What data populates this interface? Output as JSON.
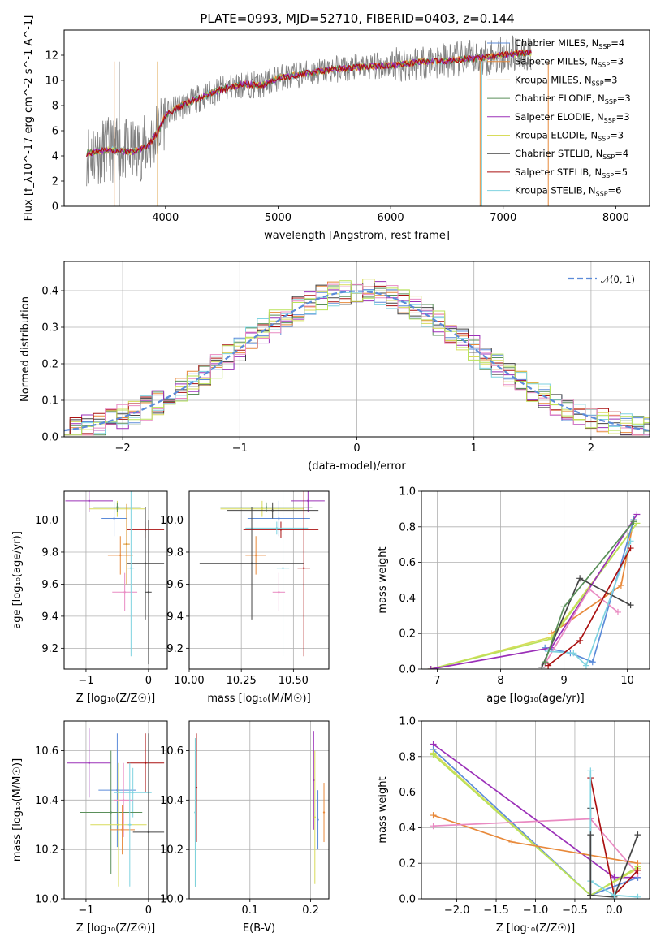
{
  "colors": {
    "chabrier_miles": "#5b8bd9",
    "salpeter_miles": "#e8893a",
    "kroupa_miles": "#d9922a",
    "chabrier_elodie": "#5a8f5a",
    "salpeter_elodie": "#9b30b8",
    "kroupa_elodie": "#d8dc5a",
    "chabrier_stelib": "#444444",
    "salpeter_stelib": "#aa1111",
    "kroupa_stelib": "#7fd3e0",
    "data": "#808080",
    "pink": "#e98ac2",
    "lime": "#b9e25a",
    "normal": "#5b8bd9"
  },
  "chart_data": [
    {
      "id": "spectrum",
      "type": "line",
      "title": "PLATE=0993, MJD=52710, FIBERID=0403, z=0.144",
      "xlabel": "wavelength [Angstrom, rest frame]",
      "ylabel": "Flux [f_λ10^-17 erg cm^-2 s^-1 A^-1]",
      "xlim": [
        3100,
        8300
      ],
      "ylim": [
        0,
        14
      ],
      "xticks": [
        4000,
        5000,
        6000,
        7000,
        8000
      ],
      "yticks": [
        0,
        2,
        4,
        6,
        8,
        10,
        12
      ],
      "grid": false,
      "legend_position": "top-right",
      "continuum": [
        [
          3300,
          4.2
        ],
        [
          3500,
          4.5
        ],
        [
          3700,
          4.3
        ],
        [
          3850,
          4.8
        ],
        [
          3950,
          6.2
        ],
        [
          4000,
          7.2
        ],
        [
          4100,
          7.8
        ],
        [
          4300,
          8.6
        ],
        [
          4500,
          9.3
        ],
        [
          4700,
          9.7
        ],
        [
          4861,
          9.6
        ],
        [
          5000,
          10.2
        ],
        [
          5200,
          10.5
        ],
        [
          5500,
          10.9
        ],
        [
          5800,
          11.1
        ],
        [
          6000,
          11.2
        ],
        [
          6300,
          11.5
        ],
        [
          6563,
          11.6
        ],
        [
          6800,
          11.8
        ],
        [
          7000,
          12.0
        ],
        [
          7200,
          12.2
        ]
      ],
      "legend": [
        {
          "pre": "Chabrier MILES, N",
          "sub": "SSP",
          "post": "=4",
          "color": "chabrier_miles"
        },
        {
          "pre": "Salpeter MILES, N",
          "sub": "SSP",
          "post": "=3",
          "color": "salpeter_miles"
        },
        {
          "pre": "Kroupa MILES, N",
          "sub": "SSP",
          "post": "=3",
          "color": "kroupa_miles"
        },
        {
          "pre": "Chabrier ELODIE, N",
          "sub": "SSP",
          "post": "=3",
          "color": "chabrier_elodie"
        },
        {
          "pre": "Salpeter ELODIE, N",
          "sub": "SSP",
          "post": "=3",
          "color": "salpeter_elodie"
        },
        {
          "pre": "Kroupa ELODIE, N",
          "sub": "SSP",
          "post": "=3",
          "color": "kroupa_elodie"
        },
        {
          "pre": "Chabrier STELIB, N",
          "sub": "SSP",
          "post": "=4",
          "color": "chabrier_stelib"
        },
        {
          "pre": "Salpeter STELIB, N",
          "sub": "SSP",
          "post": "=5",
          "color": "salpeter_stelib"
        },
        {
          "pre": "Kroupa STELIB, N",
          "sub": "SSP",
          "post": "=6",
          "color": "kroupa_stelib"
        }
      ]
    },
    {
      "id": "residuals",
      "type": "line",
      "xlabel": "(data-model)/error",
      "ylabel": "Normed distribution",
      "xlim": [
        -2.5,
        2.5
      ],
      "ylim": [
        0,
        0.48
      ],
      "xticks": [
        -2,
        -1,
        0,
        1,
        2
      ],
      "xtick_labels": [
        "−2",
        "−1",
        "0",
        "1",
        "2"
      ],
      "yticks": [
        0,
        0.1,
        0.2,
        0.3,
        0.4
      ],
      "ytick_labels": [
        "0.0",
        "0.1",
        "0.2",
        "0.3",
        "0.4"
      ],
      "grid": true,
      "legend_position": "top-right",
      "legend_label": "𝒩(0, 1)",
      "normal": {
        "mean": 0,
        "sigma": 1
      }
    },
    {
      "id": "age-vs-z",
      "type": "scatter",
      "xlabel": "Z [log₁₀(Z/Z☉)]",
      "ylabel": "age  [log₁₀(age/yr)]",
      "xlim": [
        -1.35,
        0.3
      ],
      "ylim": [
        9.07,
        10.18
      ],
      "xticks": [
        -1,
        0
      ],
      "xtick_labels": [
        "−1",
        "0"
      ],
      "yticks": [
        9.2,
        9.4,
        9.6,
        9.8,
        10.0
      ],
      "ytick_labels": [
        "9.2",
        "9.4",
        "9.6",
        "9.8",
        "10.0"
      ],
      "grid": true,
      "points": [
        {
          "x": -0.95,
          "y": 10.12,
          "xerr": 0.38,
          "yerr": 0.07,
          "color": "salpeter_elodie"
        },
        {
          "x": -0.5,
          "y": 10.07,
          "xerr": 0.45,
          "yerr": 0.05,
          "color": "kroupa_elodie"
        },
        {
          "x": -0.5,
          "y": 10.08,
          "xerr": 0.38,
          "yerr": 0.03,
          "color": "chabrier_elodie"
        },
        {
          "x": -0.55,
          "y": 10.01,
          "xerr": 0.2,
          "yerr": 0.11,
          "color": "chabrier_miles"
        },
        {
          "x": -0.05,
          "y": 9.94,
          "xerr": 0.3,
          "yerr": 0.05,
          "color": "salpeter_stelib"
        },
        {
          "x": -0.45,
          "y": 9.78,
          "xerr": 0.2,
          "yerr": 0.12,
          "color": "salpeter_miles"
        },
        {
          "x": -0.35,
          "y": 9.85,
          "xerr": 0.05,
          "yerr": 0.25,
          "color": "kroupa_miles"
        },
        {
          "x": -0.05,
          "y": 9.73,
          "xerr": 0.3,
          "yerr": 0.35,
          "color": "chabrier_stelib"
        },
        {
          "x": -0.38,
          "y": 9.55,
          "xerr": 0.2,
          "yerr": 0.12,
          "color": "pink"
        },
        {
          "x": -0.28,
          "y": 9.7,
          "xerr": 0.05,
          "yerr": 0.55,
          "color": "kroupa_stelib"
        },
        {
          "x": 0.0,
          "y": 9.55,
          "xerr": 0.05,
          "yerr": 0.45,
          "color": "chabrier_stelib"
        }
      ]
    },
    {
      "id": "age-vs-mass",
      "type": "scatter",
      "xlabel": "mass [log₁₀(M/M☉)]",
      "xlim": [
        10.0,
        10.67
      ],
      "ylim": [
        9.07,
        10.18
      ],
      "xticks": [
        10.0,
        10.25,
        10.5
      ],
      "xtick_labels": [
        "10.00",
        "10.25",
        "10.50"
      ],
      "yticks": [
        9.2,
        9.4,
        9.6,
        9.8,
        10.0
      ],
      "ytick_labels": [
        "9.2",
        "9.4",
        "9.6",
        "9.8",
        "10.0"
      ],
      "grid": true,
      "points": [
        {
          "x": 10.57,
          "y": 10.12,
          "xerr": 0.08,
          "yerr": 0.07,
          "color": "salpeter_elodie"
        },
        {
          "x": 10.35,
          "y": 10.07,
          "xerr": 0.2,
          "yerr": 0.05,
          "color": "kroupa_elodie"
        },
        {
          "x": 10.37,
          "y": 10.08,
          "xerr": 0.22,
          "yerr": 0.03,
          "color": "chabrier_elodie"
        },
        {
          "x": 10.43,
          "y": 10.01,
          "xerr": 0.15,
          "yerr": 0.11,
          "color": "chabrier_miles"
        },
        {
          "x": 10.4,
          "y": 10.06,
          "xerr": 0.22,
          "yerr": 0.05,
          "color": "chabrier_stelib"
        },
        {
          "x": 10.44,
          "y": 9.94,
          "xerr": 0.18,
          "yerr": 0.05,
          "color": "salpeter_stelib"
        },
        {
          "x": 10.42,
          "y": 9.95,
          "xerr": 0.15,
          "yerr": 0.04,
          "color": "kroupa_stelib"
        },
        {
          "x": 10.32,
          "y": 9.78,
          "xerr": 0.05,
          "yerr": 0.12,
          "color": "salpeter_miles"
        },
        {
          "x": 10.3,
          "y": 9.73,
          "xerr": 0.25,
          "yerr": 0.35,
          "color": "chabrier_stelib"
        },
        {
          "x": 10.43,
          "y": 9.55,
          "xerr": 0.03,
          "yerr": 0.12,
          "color": "pink"
        },
        {
          "x": 10.45,
          "y": 9.7,
          "xerr": 0.03,
          "yerr": 0.55,
          "color": "kroupa_stelib"
        },
        {
          "x": 10.55,
          "y": 9.7,
          "xerr": 0.03,
          "yerr": 0.55,
          "color": "salpeter_stelib"
        }
      ]
    },
    {
      "id": "weight-vs-age",
      "type": "line",
      "xlabel": "age  [log₁₀(age/yr)]",
      "ylabel": "mass weight",
      "xlim": [
        6.75,
        10.35
      ],
      "ylim": [
        0,
        1
      ],
      "xticks": [
        7,
        8,
        9,
        10
      ],
      "xtick_labels": [
        "7",
        "8",
        "9",
        "10"
      ],
      "yticks": [
        0,
        0.2,
        0.4,
        0.6,
        0.8,
        1.0
      ],
      "ytick_labels": [
        "0.0",
        "0.2",
        "0.4",
        "0.6",
        "0.8",
        "1.0"
      ],
      "grid": true,
      "series": [
        {
          "color": "salpeter_miles",
          "x": [
            8.8,
            9.9,
            10.1
          ],
          "y": [
            0.2,
            0.47,
            0.84
          ]
        },
        {
          "color": "kroupa_elodie",
          "x": [
            6.9,
            8.8,
            10.15
          ],
          "y": [
            0.0,
            0.18,
            0.82
          ]
        },
        {
          "color": "lime",
          "x": [
            6.9,
            8.8,
            10.15
          ],
          "y": [
            0.0,
            0.17,
            0.82
          ]
        },
        {
          "color": "chabrier_miles",
          "x": [
            8.7,
            9.1,
            9.45,
            10.1
          ],
          "y": [
            0.12,
            0.09,
            0.04,
            0.84
          ]
        },
        {
          "color": "salpeter_elodie",
          "x": [
            6.9,
            8.8,
            10.15
          ],
          "y": [
            0.0,
            0.12,
            0.87
          ]
        },
        {
          "color": "pink",
          "x": [
            8.7,
            9.4,
            9.85
          ],
          "y": [
            0.03,
            0.45,
            0.32
          ]
        },
        {
          "color": "chabrier_stelib",
          "x": [
            8.65,
            9.25,
            10.05
          ],
          "y": [
            0.01,
            0.51,
            0.36
          ]
        },
        {
          "color": "kroupa_stelib",
          "x": [
            8.75,
            9.15,
            9.35,
            10.05
          ],
          "y": [
            0.1,
            0.09,
            0.02,
            0.72
          ]
        },
        {
          "color": "salpeter_stelib",
          "x": [
            8.75,
            9.25,
            10.05
          ],
          "y": [
            0.02,
            0.16,
            0.68
          ]
        },
        {
          "color": "chabrier_elodie",
          "x": [
            8.7,
            9.0,
            10.1
          ],
          "y": [
            0.04,
            0.35,
            0.83
          ]
        }
      ]
    },
    {
      "id": "mass-vs-z",
      "type": "scatter",
      "xlabel": "Z [log₁₀(Z/Z☉)]",
      "ylabel": "mass [log₁₀(M/M☉)]",
      "xlim": [
        -1.35,
        0.3
      ],
      "ylim": [
        10.0,
        10.72
      ],
      "xticks": [
        -1,
        0
      ],
      "xtick_labels": [
        "−1",
        "0"
      ],
      "yticks": [
        10.0,
        10.2,
        10.4,
        10.6
      ],
      "ytick_labels": [
        "10.0",
        "10.2",
        "10.4",
        "10.6"
      ],
      "grid": true,
      "points": [
        {
          "x": -0.95,
          "y": 10.55,
          "xerr": 0.35,
          "yerr": 0.14,
          "color": "salpeter_elodie"
        },
        {
          "x": -0.05,
          "y": 10.55,
          "xerr": 0.3,
          "yerr": 0.12,
          "color": "salpeter_stelib"
        },
        {
          "x": -0.5,
          "y": 10.44,
          "xerr": 0.3,
          "yerr": 0.23,
          "color": "chabrier_miles"
        },
        {
          "x": -0.25,
          "y": 10.43,
          "xerr": 0.3,
          "yerr": 0.1,
          "color": "kroupa_stelib"
        },
        {
          "x": -0.4,
          "y": 10.4,
          "xerr": 0.15,
          "yerr": 0.15,
          "color": "pink"
        },
        {
          "x": -0.6,
          "y": 10.35,
          "xerr": 0.5,
          "yerr": 0.25,
          "color": "chabrier_elodie"
        },
        {
          "x": -0.48,
          "y": 10.3,
          "xerr": 0.45,
          "yerr": 0.25,
          "color": "kroupa_elodie"
        },
        {
          "x": -0.42,
          "y": 10.28,
          "xerr": 0.2,
          "yerr": 0.1,
          "color": "salpeter_miles"
        },
        {
          "x": 0.0,
          "y": 10.27,
          "xerr": 0.25,
          "yerr": 0.4,
          "color": "chabrier_stelib"
        },
        {
          "x": -0.3,
          "y": 10.3,
          "xerr": 0.03,
          "yerr": 0.25,
          "color": "kroupa_stelib"
        }
      ]
    },
    {
      "id": "mass-vs-ebv",
      "type": "scatter",
      "xlabel": "E(B-V)",
      "xlim": [
        0.0,
        0.23
      ],
      "ylim": [
        10.0,
        10.72
      ],
      "xticks": [
        0.1,
        0.2
      ],
      "xtick_labels": [
        "0.1",
        "0.2"
      ],
      "yticks": [
        10.0,
        10.2,
        10.4,
        10.6
      ],
      "ytick_labels": [
        "10.0",
        "10.2",
        "10.4",
        "10.6"
      ],
      "grid": true,
      "points": [
        {
          "x": 0.01,
          "y": 10.35,
          "xerr": 0.0,
          "yerr": 0.3,
          "color": "chabrier_elodie"
        },
        {
          "x": 0.01,
          "y": 10.35,
          "xerr": 0.0,
          "yerr": 0.3,
          "color": "kroupa_stelib"
        },
        {
          "x": 0.012,
          "y": 10.45,
          "xerr": 0.0,
          "yerr": 0.22,
          "color": "salpeter_stelib"
        },
        {
          "x": 0.205,
          "y": 10.48,
          "xerr": 0.0,
          "yerr": 0.2,
          "color": "salpeter_elodie"
        },
        {
          "x": 0.207,
          "y": 10.33,
          "xerr": 0.0,
          "yerr": 0.27,
          "color": "kroupa_elodie"
        },
        {
          "x": 0.212,
          "y": 10.32,
          "xerr": 0.0,
          "yerr": 0.12,
          "color": "chabrier_miles"
        },
        {
          "x": 0.222,
          "y": 10.35,
          "xerr": 0.0,
          "yerr": 0.12,
          "color": "salpeter_miles"
        }
      ]
    },
    {
      "id": "weight-vs-z",
      "type": "line",
      "xlabel": "Z [log₁₀(Z/Z☉)]",
      "ylabel": "mass weight",
      "xlim": [
        -2.45,
        0.45
      ],
      "ylim": [
        0,
        1
      ],
      "xticks": [
        -2.0,
        -1.5,
        -1.0,
        -0.5,
        0.0
      ],
      "xtick_labels": [
        "−2.0",
        "−1.5",
        "−1.0",
        "−0.5",
        "0.0"
      ],
      "yticks": [
        0,
        0.2,
        0.4,
        0.6,
        0.8,
        1.0
      ],
      "ytick_labels": [
        "0.0",
        "0.2",
        "0.4",
        "0.6",
        "0.8",
        "1.0"
      ],
      "grid": true,
      "series": [
        {
          "color": "salpeter_elodie",
          "x": [
            -2.3,
            0.0,
            0.3
          ],
          "y": [
            0.87,
            0.12,
            0.12
          ]
        },
        {
          "color": "chabrier_miles",
          "x": [
            -2.3,
            -0.3,
            0.3
          ],
          "y": [
            0.84,
            0.02,
            0.12
          ]
        },
        {
          "color": "kroupa_elodie",
          "x": [
            -2.3,
            -0.3,
            0.3
          ],
          "y": [
            0.82,
            0.02,
            0.17
          ]
        },
        {
          "color": "lime",
          "x": [
            -2.3,
            -0.3,
            0.3
          ],
          "y": [
            0.81,
            0.02,
            0.18
          ]
        },
        {
          "color": "salpeter_miles",
          "x": [
            -2.3,
            -1.3,
            0.3
          ],
          "y": [
            0.47,
            0.32,
            0.2
          ]
        },
        {
          "color": "pink",
          "x": [
            -2.3,
            -0.3,
            0.3
          ],
          "y": [
            0.41,
            0.45,
            0.14
          ]
        },
        {
          "color": "salpeter_stelib",
          "x": [
            -0.3,
            0.0,
            0.3
          ],
          "y": [
            0.68,
            0.02,
            0.16
          ]
        },
        {
          "color": "chabrier_stelib",
          "x": [
            -0.3,
            -0.3,
            0.0,
            0.3
          ],
          "y": [
            0.51,
            0.02,
            0.01,
            0.36
          ]
        },
        {
          "color": "kroupa_stelib",
          "x": [
            -0.3,
            -0.3,
            0.0,
            0.3
          ],
          "y": [
            0.72,
            0.1,
            0.02,
            0.01
          ]
        },
        {
          "color": "chabrier_stelib",
          "x": [
            -0.3,
            -0.3
          ],
          "y": [
            0.36,
            0.02
          ]
        }
      ]
    }
  ]
}
